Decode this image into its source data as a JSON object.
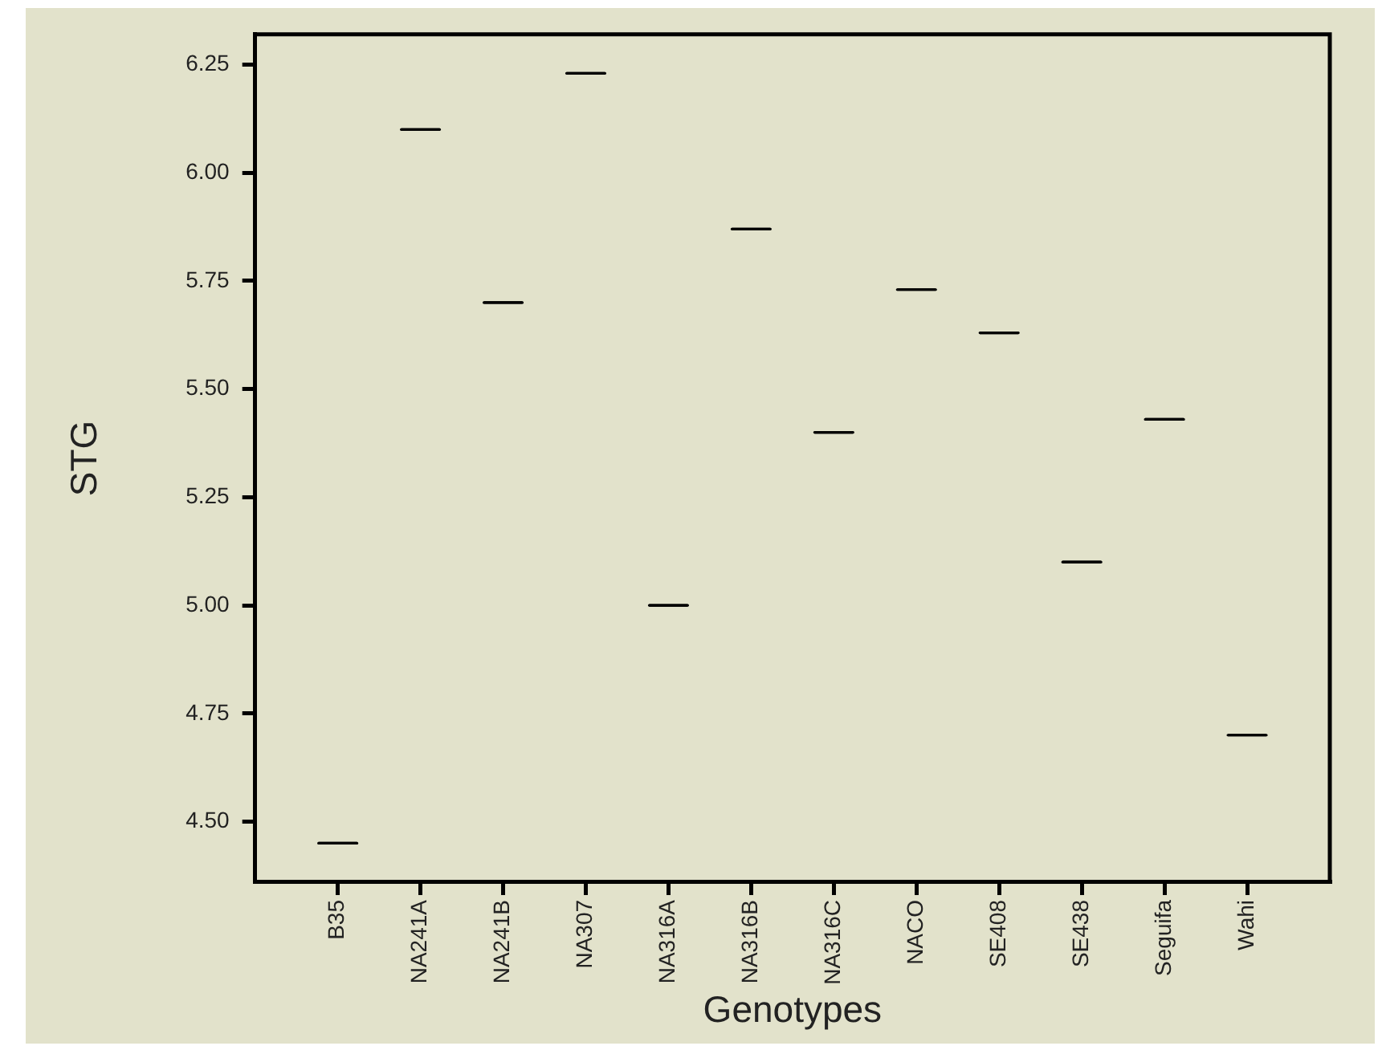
{
  "chart_data": {
    "type": "box",
    "xlabel": "Genotypes",
    "ylabel": "STG",
    "grid": false,
    "legend": false,
    "categories": [
      "B35",
      "NA241A",
      "NA241B",
      "NA307",
      "NA316A",
      "NA316B",
      "NA316C",
      "NACO",
      "SE408",
      "SE438",
      "Seguifa",
      "Wahi"
    ],
    "series": [
      {
        "color": "#000000",
        "boxes": [
          {
            "low": 4.45,
            "q1": 4.45,
            "median": 4.45,
            "q3": 4.45,
            "high": 4.45
          },
          {
            "low": 6.1,
            "q1": 6.1,
            "median": 6.1,
            "q3": 6.1,
            "high": 6.1
          },
          {
            "low": 5.7,
            "q1": 5.7,
            "median": 5.7,
            "q3": 5.7,
            "high": 5.7
          },
          {
            "low": 6.23,
            "q1": 6.23,
            "median": 6.23,
            "q3": 6.23,
            "high": 6.23
          },
          {
            "low": 5.0,
            "q1": 5.0,
            "median": 5.0,
            "q3": 5.0,
            "high": 5.0
          },
          {
            "low": 5.87,
            "q1": 5.87,
            "median": 5.87,
            "q3": 5.87,
            "high": 5.87
          },
          {
            "low": 5.4,
            "q1": 5.4,
            "median": 5.4,
            "q3": 5.4,
            "high": 5.4
          },
          {
            "low": 5.73,
            "q1": 5.73,
            "median": 5.73,
            "q3": 5.73,
            "high": 5.73
          },
          {
            "low": 5.63,
            "q1": 5.63,
            "median": 5.63,
            "q3": 5.63,
            "high": 5.63
          },
          {
            "low": 5.1,
            "q1": 5.1,
            "median": 5.1,
            "q3": 5.1,
            "high": 5.1
          },
          {
            "low": 5.43,
            "q1": 5.43,
            "median": 5.43,
            "q3": 5.43,
            "high": 5.43
          },
          {
            "low": 4.7,
            "q1": 4.7,
            "median": 4.7,
            "q3": 4.7,
            "high": 4.7
          }
        ]
      }
    ],
    "ylim": [
      4.36,
      6.32
    ],
    "yticks": [
      {
        "value": 4.5,
        "label": "4.50"
      },
      4.75,
      {
        "value": 5,
        "label": "5.00"
      },
      5.25,
      {
        "value": 5.5,
        "label": "5.50"
      },
      5.75,
      {
        "value": 6,
        "label": "6.00"
      },
      6.25
    ]
  }
}
